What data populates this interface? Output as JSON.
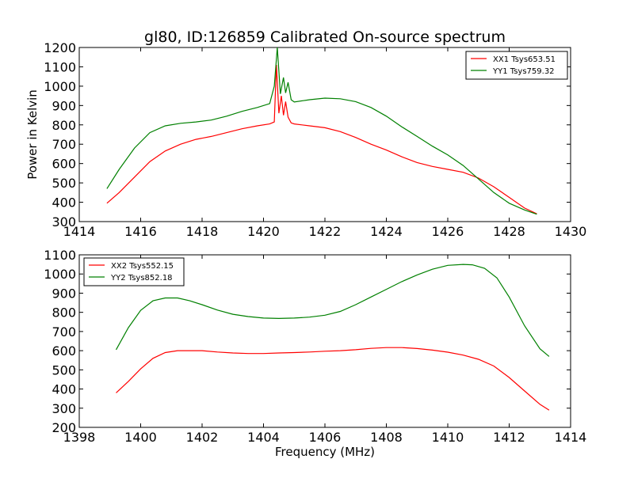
{
  "figure_title": "gl80, ID:126859 Calibrated On-source spectrum",
  "chart_data": [
    {
      "type": "line",
      "title": "gl80, ID:126859 Calibrated On-source spectrum",
      "xlabel": "",
      "ylabel": "Power in Kelvin",
      "xlim": [
        1414,
        1430
      ],
      "ylim": [
        300,
        1200
      ],
      "xticks": [
        1414,
        1416,
        1418,
        1420,
        1422,
        1424,
        1426,
        1428,
        1430
      ],
      "yticks": [
        300,
        400,
        500,
        600,
        700,
        800,
        900,
        1000,
        1100,
        1200
      ],
      "grid": false,
      "legend_position": "top-right",
      "series": [
        {
          "name": "XX1 Tsys653.51",
          "color": "#ff0000",
          "x": [
            1414.9,
            1415.3,
            1415.8,
            1416.3,
            1416.8,
            1417.3,
            1417.8,
            1418.3,
            1418.8,
            1419.3,
            1419.8,
            1420.2,
            1420.35,
            1420.42,
            1420.5,
            1420.58,
            1420.65,
            1420.72,
            1420.8,
            1420.9,
            1421.0,
            1421.5,
            1422.0,
            1422.5,
            1423.0,
            1423.5,
            1424.0,
            1424.5,
            1425.0,
            1425.5,
            1426.0,
            1426.5,
            1427.0,
            1427.5,
            1428.0,
            1428.5,
            1428.9
          ],
          "y": [
            395,
            450,
            530,
            610,
            665,
            700,
            725,
            740,
            760,
            780,
            795,
            805,
            815,
            1110,
            860,
            950,
            850,
            920,
            840,
            810,
            805,
            795,
            785,
            765,
            735,
            700,
            670,
            635,
            605,
            585,
            570,
            555,
            525,
            480,
            425,
            370,
            340
          ]
        },
        {
          "name": "YY1 Tsys759.32",
          "color": "#008000",
          "x": [
            1414.9,
            1415.3,
            1415.8,
            1416.3,
            1416.8,
            1417.3,
            1417.8,
            1418.3,
            1418.8,
            1419.3,
            1419.8,
            1420.2,
            1420.35,
            1420.45,
            1420.55,
            1420.65,
            1420.72,
            1420.8,
            1420.9,
            1421.0,
            1421.5,
            1422.0,
            1422.5,
            1423.0,
            1423.5,
            1424.0,
            1424.5,
            1425.0,
            1425.5,
            1426.0,
            1426.5,
            1427.0,
            1427.5,
            1428.0,
            1428.5,
            1428.9
          ],
          "y": [
            470,
            570,
            680,
            760,
            795,
            808,
            815,
            825,
            845,
            870,
            890,
            910,
            1000,
            1200,
            960,
            1045,
            965,
            1020,
            930,
            918,
            930,
            938,
            935,
            920,
            890,
            845,
            790,
            740,
            690,
            645,
            590,
            520,
            450,
            395,
            360,
            338
          ]
        }
      ]
    },
    {
      "type": "line",
      "title": "",
      "xlabel": "Frequency (MHz)",
      "ylabel": "",
      "xlim": [
        1398,
        1414
      ],
      "ylim": [
        200,
        1100
      ],
      "xticks": [
        1398,
        1400,
        1402,
        1404,
        1406,
        1408,
        1410,
        1412,
        1414
      ],
      "yticks": [
        200,
        300,
        400,
        500,
        600,
        700,
        800,
        900,
        1000,
        1100
      ],
      "grid": false,
      "legend_position": "top-left",
      "series": [
        {
          "name": "XX2 Tsys552.15",
          "color": "#ff0000",
          "x": [
            1399.2,
            1399.6,
            1400.0,
            1400.4,
            1400.8,
            1401.2,
            1401.6,
            1402.0,
            1402.5,
            1403.0,
            1403.5,
            1404.0,
            1404.5,
            1405.0,
            1405.5,
            1406.0,
            1406.5,
            1407.0,
            1407.5,
            1408.0,
            1408.5,
            1409.0,
            1409.5,
            1410.0,
            1410.5,
            1411.0,
            1411.5,
            1412.0,
            1412.5,
            1413.0,
            1413.3
          ],
          "y": [
            380,
            440,
            505,
            560,
            590,
            600,
            600,
            600,
            593,
            588,
            585,
            585,
            588,
            590,
            593,
            597,
            600,
            605,
            612,
            616,
            616,
            611,
            603,
            592,
            577,
            555,
            520,
            460,
            390,
            320,
            290
          ]
        },
        {
          "name": "YY2 Tsys852.18",
          "color": "#008000",
          "x": [
            1399.2,
            1399.6,
            1400.0,
            1400.4,
            1400.8,
            1401.2,
            1401.6,
            1402.0,
            1402.5,
            1403.0,
            1403.5,
            1404.0,
            1404.5,
            1405.0,
            1405.5,
            1406.0,
            1406.5,
            1407.0,
            1407.5,
            1408.0,
            1408.5,
            1409.0,
            1409.5,
            1410.0,
            1410.5,
            1410.8,
            1411.2,
            1411.6,
            1412.0,
            1412.5,
            1413.0,
            1413.3
          ],
          "y": [
            605,
            720,
            810,
            860,
            875,
            875,
            860,
            840,
            812,
            790,
            778,
            770,
            768,
            770,
            775,
            785,
            805,
            840,
            880,
            920,
            960,
            995,
            1025,
            1045,
            1050,
            1048,
            1030,
            980,
            880,
            730,
            610,
            570
          ]
        }
      ]
    }
  ]
}
